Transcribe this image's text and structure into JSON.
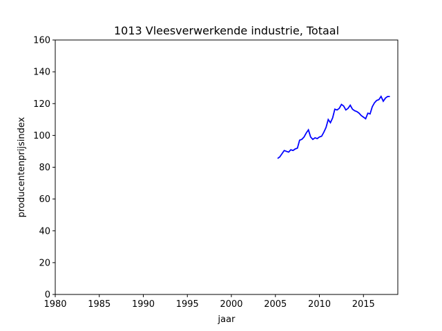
{
  "chart_data": {
    "type": "line",
    "title": "1013 Vleesverwerkende industrie, Totaal",
    "xlabel": "jaar",
    "ylabel": "producentenprijsindex",
    "xlim": [
      1980,
      2018.9
    ],
    "ylim": [
      0,
      160
    ],
    "xticks": [
      1980,
      1985,
      1990,
      1995,
      2000,
      2005,
      2010,
      2015
    ],
    "yticks": [
      0,
      20,
      40,
      60,
      80,
      100,
      120,
      140,
      160
    ],
    "grid": false,
    "legend": "none",
    "line_color": "#0000ff",
    "series": [
      {
        "x": [
          2005.25,
          2005.5,
          2005.75,
          2006.0,
          2006.25,
          2006.5,
          2006.75,
          2007.0,
          2007.25,
          2007.5,
          2007.75,
          2008.0,
          2008.25,
          2008.5,
          2008.75,
          2009.0,
          2009.25,
          2009.5,
          2009.75,
          2010.0,
          2010.25,
          2010.5,
          2010.75,
          2011.0,
          2011.25,
          2011.5,
          2011.75,
          2012.0,
          2012.25,
          2012.5,
          2012.75,
          2013.0,
          2013.25,
          2013.5,
          2013.75,
          2014.0,
          2014.25,
          2014.5,
          2014.75,
          2015.0,
          2015.25,
          2015.5,
          2015.75,
          2016.0,
          2016.25,
          2016.5,
          2016.75,
          2017.0,
          2017.25,
          2017.5,
          2017.75,
          2018.0
        ],
        "y": [
          85.5,
          86.5,
          88.5,
          90.5,
          90.0,
          89.5,
          91.0,
          90.5,
          91.5,
          92.0,
          97.0,
          97.5,
          99.0,
          101.5,
          103.5,
          99.0,
          97.5,
          98.5,
          98.0,
          99.0,
          99.5,
          102.0,
          105.0,
          110.0,
          108.0,
          111.0,
          116.5,
          116.0,
          117.0,
          119.5,
          118.5,
          116.0,
          117.0,
          119.0,
          116.5,
          115.5,
          115.0,
          114.0,
          112.5,
          111.5,
          110.5,
          114.0,
          113.5,
          118.0,
          120.5,
          122.0,
          122.5,
          124.5,
          121.5,
          123.5,
          124.5,
          124.5
        ]
      }
    ]
  }
}
